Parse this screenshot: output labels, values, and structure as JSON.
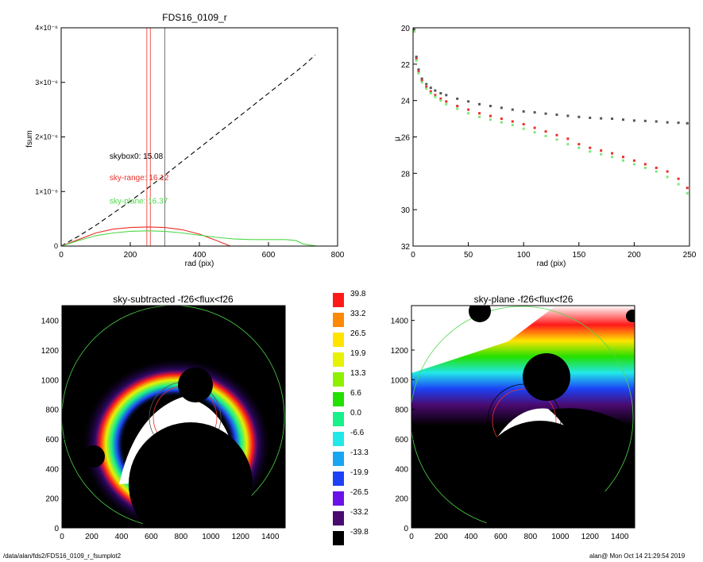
{
  "footer": {
    "left": "/data/alan/fds2/FDS16_0109_r_fsumplot2",
    "right": "alan@  Mon Oct 14 21:29:54 2019"
  },
  "colors": {
    "black": "#000000",
    "red": "#e8302a",
    "green": "#4ed84a",
    "gray": "#555555",
    "lightgreen": "#7ee87a"
  },
  "chart_data": [
    {
      "type": "line",
      "title": "FDS16_0109_r",
      "xlabel": "rad (pix)",
      "ylabel": "fsum",
      "xlim": [
        0,
        800
      ],
      "ylim": [
        0,
        4e-06
      ],
      "xticks": [
        "0",
        "200",
        "400",
        "600",
        "800"
      ],
      "yticks": [
        {
          "v": 0,
          "label": "0"
        },
        {
          "v": 1e-06,
          "label": "1×10⁻⁶"
        },
        {
          "v": 2e-06,
          "label": "2×10⁻⁶"
        },
        {
          "v": 3e-06,
          "label": "3×10⁻⁶"
        },
        {
          "v": 4e-06,
          "label": "4×10⁻⁶"
        }
      ],
      "vlines": [
        {
          "x": 248,
          "color": "#e8302a"
        },
        {
          "x": 258,
          "color": "#e8302a"
        },
        {
          "x": 300,
          "color": "#555555"
        }
      ],
      "annotations": [
        {
          "text": "skybox0: 15.08",
          "color": "#000000",
          "x": 140,
          "y": 1.6e-06
        },
        {
          "text": "sky-range: 16.12",
          "color": "#e8302a",
          "x": 140,
          "y": 1.21e-06
        },
        {
          "text": "sky-plane: 16.37",
          "color": "#4ed84a",
          "x": 140,
          "y": 7.8e-07
        }
      ],
      "series": [
        {
          "style": "dashed",
          "color": "#000000",
          "x": [
            0,
            50,
            100,
            150,
            200,
            250,
            300,
            350,
            400,
            450,
            500,
            550,
            600,
            650,
            700,
            735
          ],
          "y": [
            0,
            1.8e-07,
            3.8e-07,
            6e-07,
            8.2e-07,
            1.06e-06,
            1.3e-06,
            1.55e-06,
            1.8e-06,
            2.05e-06,
            2.3e-06,
            2.55e-06,
            2.8e-06,
            3.05e-06,
            3.3e-06,
            3.5e-06
          ]
        },
        {
          "style": "solid",
          "color": "#e8302a",
          "x": [
            0,
            50,
            100,
            150,
            200,
            250,
            300,
            350,
            400,
            450,
            490
          ],
          "y": [
            0,
            1.2e-07,
            2.4e-07,
            3.1e-07,
            3.4e-07,
            3.5e-07,
            3.4e-07,
            3e-07,
            2.2e-07,
            1e-07,
            0
          ]
        },
        {
          "style": "solid",
          "color": "#4ed84a",
          "x": [
            0,
            50,
            100,
            150,
            200,
            250,
            300,
            350,
            400,
            450,
            500,
            550,
            600,
            650,
            680,
            700,
            740
          ],
          "y": [
            0,
            1e-07,
            1.9e-07,
            2.4e-07,
            2.7e-07,
            2.8e-07,
            2.7e-07,
            2.4e-07,
            2e-07,
            1.6e-07,
            1.3e-07,
            1.2e-07,
            1.2e-07,
            1.2e-07,
            1e-07,
            4e-08,
            0
          ]
        }
      ]
    },
    {
      "type": "scatter",
      "title": "",
      "xlabel": "rad (pix)",
      "ylabel": "μ",
      "xlim": [
        0,
        250
      ],
      "ylim": [
        32,
        20
      ],
      "xticks": [
        "0",
        "50",
        "100",
        "150",
        "200",
        "250"
      ],
      "yticks": [
        "20",
        "22",
        "24",
        "26",
        "28",
        "30",
        "32"
      ],
      "series": [
        {
          "color": "#555555",
          "x": [
            1,
            3,
            5,
            8,
            12,
            16,
            20,
            25,
            30,
            40,
            50,
            60,
            70,
            80,
            90,
            100,
            110,
            120,
            130,
            140,
            150,
            160,
            170,
            180,
            190,
            200,
            210,
            220,
            230,
            240,
            248
          ],
          "y": [
            20.1,
            21.6,
            22.3,
            22.8,
            23.1,
            23.3,
            23.45,
            23.6,
            23.7,
            23.9,
            24.05,
            24.2,
            24.3,
            24.4,
            24.5,
            24.6,
            24.65,
            24.72,
            24.78,
            24.84,
            24.9,
            24.95,
            24.98,
            25.0,
            25.05,
            25.1,
            25.12,
            25.15,
            25.2,
            25.22,
            25.25
          ]
        },
        {
          "color": "#e8302a",
          "x": [
            1,
            3,
            5,
            8,
            12,
            16,
            20,
            25,
            30,
            40,
            50,
            60,
            70,
            80,
            90,
            100,
            110,
            120,
            130,
            140,
            150,
            160,
            170,
            180,
            190,
            200,
            210,
            220,
            230,
            240,
            248
          ],
          "y": [
            20.2,
            21.7,
            22.4,
            22.9,
            23.25,
            23.5,
            23.7,
            23.9,
            24.05,
            24.3,
            24.5,
            24.7,
            24.85,
            25.0,
            25.15,
            25.3,
            25.5,
            25.7,
            25.9,
            26.1,
            26.4,
            26.6,
            26.75,
            26.9,
            27.1,
            27.3,
            27.5,
            27.7,
            27.9,
            28.3,
            28.8
          ]
        },
        {
          "color": "#7ee87a",
          "x": [
            1,
            3,
            5,
            8,
            12,
            16,
            20,
            25,
            30,
            40,
            50,
            60,
            70,
            80,
            90,
            100,
            110,
            120,
            130,
            140,
            150,
            160,
            170,
            180,
            190,
            200,
            210,
            220,
            230,
            240,
            248
          ],
          "y": [
            20.2,
            21.8,
            22.5,
            23.0,
            23.35,
            23.6,
            23.8,
            24.0,
            24.2,
            24.45,
            24.7,
            24.9,
            25.05,
            25.2,
            25.35,
            25.55,
            25.75,
            25.95,
            26.15,
            26.4,
            26.6,
            26.8,
            26.95,
            27.1,
            27.3,
            27.5,
            27.7,
            27.9,
            28.2,
            28.6,
            29.1
          ]
        }
      ]
    },
    {
      "type": "heatmap",
      "title": "sky-subtracted -f26<flux<f26",
      "xlim": [
        0,
        1500
      ],
      "ylim": [
        0,
        1500
      ],
      "xticks": [
        "0",
        "200",
        "400",
        "600",
        "800",
        "1000",
        "1200",
        "1400"
      ],
      "yticks": [
        "0",
        "200",
        "400",
        "600",
        "800",
        "1000",
        "1200",
        "1400"
      ]
    },
    {
      "type": "heatmap",
      "title": "sky-plane -f26<flux<f26",
      "xlim": [
        0,
        1500
      ],
      "ylim": [
        0,
        1500
      ],
      "xticks": [
        "0",
        "200",
        "400",
        "600",
        "800",
        "1000",
        "1200",
        "1400"
      ],
      "yticks": [
        "0",
        "200",
        "400",
        "600",
        "800",
        "1000",
        "1200",
        "1400"
      ]
    },
    {
      "type": "colorbar",
      "labels": [
        "39.8",
        "33.2",
        "26.5",
        "19.9",
        "13.3",
        "6.6",
        "0.0",
        "-6.6",
        "-13.3",
        "-19.9",
        "-26.5",
        "-33.2",
        "-39.8"
      ],
      "colors": [
        "#ff1a1a",
        "#ff8a00",
        "#ffe400",
        "#e6f200",
        "#8ef000",
        "#22e000",
        "#18f08a",
        "#22e8e8",
        "#16a6f2",
        "#1c42f6",
        "#6a12e8",
        "#4a0a70",
        "#000000"
      ]
    }
  ]
}
